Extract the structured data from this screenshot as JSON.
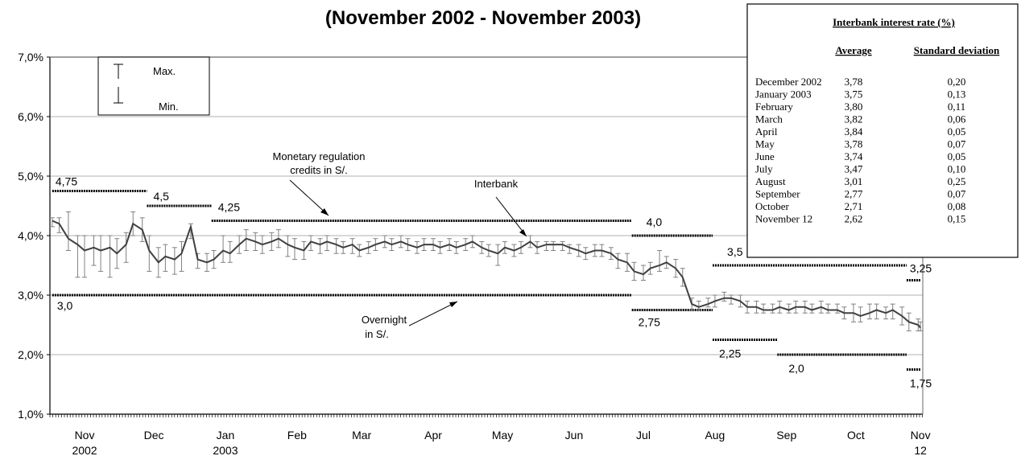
{
  "chart_data": {
    "type": "line",
    "title": "(November 2002 - November 2003)",
    "y_ticks": [
      "1,0%",
      "2,0%",
      "3,0%",
      "4,0%",
      "5,0%",
      "6,0%",
      "7,0%"
    ],
    "ylim": [
      1.0,
      7.0
    ],
    "grid": true,
    "x_tick_labels": [
      {
        "label": "Nov",
        "sub": "2002"
      },
      {
        "label": "Dec",
        "sub": ""
      },
      {
        "label": "Jan",
        "sub": "2003"
      },
      {
        "label": "Feb",
        "sub": ""
      },
      {
        "label": "Mar",
        "sub": ""
      },
      {
        "label": "Apr",
        "sub": ""
      },
      {
        "label": "May",
        "sub": ""
      },
      {
        "label": "Jun",
        "sub": ""
      },
      {
        "label": "Jul",
        "sub": ""
      },
      {
        "label": "Aug",
        "sub": ""
      },
      {
        "label": "Sep",
        "sub": ""
      },
      {
        "label": "Oct",
        "sub": ""
      },
      {
        "label": "Nov",
        "sub": "12"
      }
    ],
    "legend": {
      "max": "Max.",
      "min": "Min."
    },
    "annotations": {
      "monetary": [
        "Monetary regulation",
        "credits in S/."
      ],
      "interbank": "Interbank",
      "overnight": [
        "Overnight",
        "in S/."
      ]
    },
    "monetary_regulation_credits": [
      {
        "start": "2002-11-01",
        "end": "2002-12-12",
        "value": 4.75,
        "label": "4,75"
      },
      {
        "start": "2002-12-12",
        "end": "2003-01-09",
        "value": 4.5,
        "label": "4,5"
      },
      {
        "start": "2003-01-09",
        "end": "2003-07-10",
        "value": 4.25,
        "label": "4,25"
      },
      {
        "start": "2003-07-10",
        "end": "2003-08-14",
        "value": 4.0,
        "label": "4,0"
      },
      {
        "start": "2003-08-14",
        "end": "2003-11-06",
        "value": 3.5,
        "label": "3,5"
      },
      {
        "start": "2003-11-06",
        "end": "2003-11-12",
        "value": 3.25,
        "label": "3,25"
      }
    ],
    "overnight": [
      {
        "start": "2002-11-01",
        "end": "2003-07-10",
        "value": 3.0,
        "label": "3,0"
      },
      {
        "start": "2003-07-10",
        "end": "2003-08-14",
        "value": 2.75,
        "label": "2,75"
      },
      {
        "start": "2003-08-14",
        "end": "2003-09-11",
        "value": 2.25,
        "label": "2,25"
      },
      {
        "start": "2003-09-11",
        "end": "2003-11-06",
        "value": 2.0,
        "label": "2,0"
      },
      {
        "start": "2003-11-06",
        "end": "2003-11-12",
        "value": 1.75,
        "label": "1,75"
      }
    ],
    "interbank": {
      "x": [
        "2002-11-01",
        "2002-11-04",
        "2002-11-08",
        "2002-11-12",
        "2002-11-15",
        "2002-11-19",
        "2002-11-22",
        "2002-11-26",
        "2002-11-29",
        "2002-12-03",
        "2002-12-06",
        "2002-12-10",
        "2002-12-13",
        "2002-12-17",
        "2002-12-20",
        "2002-12-24",
        "2002-12-27",
        "2002-12-31",
        "2003-01-03",
        "2003-01-07",
        "2003-01-10",
        "2003-01-14",
        "2003-01-17",
        "2003-01-21",
        "2003-01-24",
        "2003-01-28",
        "2003-01-31",
        "2003-02-04",
        "2003-02-07",
        "2003-02-11",
        "2003-02-14",
        "2003-02-18",
        "2003-02-21",
        "2003-02-25",
        "2003-02-28",
        "2003-03-04",
        "2003-03-07",
        "2003-03-11",
        "2003-03-14",
        "2003-03-18",
        "2003-03-21",
        "2003-03-25",
        "2003-03-28",
        "2003-04-01",
        "2003-04-04",
        "2003-04-08",
        "2003-04-11",
        "2003-04-15",
        "2003-04-18",
        "2003-04-22",
        "2003-04-25",
        "2003-04-29",
        "2003-05-02",
        "2003-05-06",
        "2003-05-09",
        "2003-05-13",
        "2003-05-16",
        "2003-05-20",
        "2003-05-23",
        "2003-05-27",
        "2003-05-30",
        "2003-06-03",
        "2003-06-06",
        "2003-06-10",
        "2003-06-13",
        "2003-06-17",
        "2003-06-20",
        "2003-06-24",
        "2003-06-27",
        "2003-07-01",
        "2003-07-04",
        "2003-07-08",
        "2003-07-11",
        "2003-07-15",
        "2003-07-18",
        "2003-07-22",
        "2003-07-25",
        "2003-07-29",
        "2003-08-01",
        "2003-08-05",
        "2003-08-08",
        "2003-08-12",
        "2003-08-15",
        "2003-08-19",
        "2003-08-22",
        "2003-08-26",
        "2003-08-29",
        "2003-09-02",
        "2003-09-05",
        "2003-09-09",
        "2003-09-12",
        "2003-09-16",
        "2003-09-19",
        "2003-09-23",
        "2003-09-26",
        "2003-09-30",
        "2003-10-03",
        "2003-10-07",
        "2003-10-10",
        "2003-10-14",
        "2003-10-17",
        "2003-10-21",
        "2003-10-24",
        "2003-10-28",
        "2003-10-31",
        "2003-11-04",
        "2003-11-07",
        "2003-11-11",
        "2003-11-12"
      ],
      "values": [
        4.25,
        4.2,
        3.95,
        3.85,
        3.75,
        3.8,
        3.75,
        3.8,
        3.7,
        3.85,
        4.2,
        4.1,
        3.75,
        3.55,
        3.65,
        3.6,
        3.7,
        4.15,
        3.6,
        3.55,
        3.6,
        3.75,
        3.7,
        3.85,
        3.95,
        3.9,
        3.85,
        3.9,
        3.95,
        3.85,
        3.8,
        3.75,
        3.9,
        3.85,
        3.9,
        3.85,
        3.8,
        3.85,
        3.75,
        3.8,
        3.85,
        3.9,
        3.85,
        3.9,
        3.85,
        3.8,
        3.85,
        3.85,
        3.8,
        3.85,
        3.8,
        3.85,
        3.9,
        3.8,
        3.75,
        3.7,
        3.8,
        3.75,
        3.8,
        3.9,
        3.8,
        3.85,
        3.85,
        3.85,
        3.8,
        3.75,
        3.7,
        3.75,
        3.75,
        3.7,
        3.6,
        3.55,
        3.4,
        3.35,
        3.45,
        3.5,
        3.55,
        3.45,
        3.3,
        2.85,
        2.8,
        2.85,
        2.9,
        2.95,
        2.95,
        2.9,
        2.8,
        2.8,
        2.75,
        2.75,
        2.8,
        2.75,
        2.8,
        2.8,
        2.75,
        2.8,
        2.75,
        2.75,
        2.7,
        2.7,
        2.65,
        2.7,
        2.75,
        2.7,
        2.75,
        2.65,
        2.55,
        2.5,
        2.45
      ],
      "min": [
        4.15,
        4.05,
        3.75,
        3.3,
        3.3,
        3.5,
        3.4,
        3.3,
        3.45,
        3.55,
        4.0,
        3.9,
        3.4,
        3.3,
        3.4,
        3.35,
        3.4,
        3.95,
        3.45,
        3.4,
        3.45,
        3.55,
        3.55,
        3.7,
        3.75,
        3.75,
        3.7,
        3.75,
        3.8,
        3.65,
        3.6,
        3.6,
        3.75,
        3.7,
        3.75,
        3.7,
        3.7,
        3.7,
        3.65,
        3.7,
        3.75,
        3.8,
        3.75,
        3.8,
        3.75,
        3.7,
        3.75,
        3.75,
        3.7,
        3.75,
        3.7,
        3.75,
        3.8,
        3.7,
        3.65,
        3.5,
        3.7,
        3.65,
        3.7,
        3.8,
        3.7,
        3.75,
        3.75,
        3.75,
        3.7,
        3.65,
        3.6,
        3.65,
        3.65,
        3.6,
        3.45,
        3.4,
        3.25,
        3.25,
        3.35,
        3.4,
        3.45,
        3.3,
        3.15,
        2.75,
        2.75,
        2.8,
        2.8,
        2.9,
        2.85,
        2.8,
        2.7,
        2.7,
        2.7,
        2.7,
        2.7,
        2.7,
        2.7,
        2.7,
        2.7,
        2.7,
        2.7,
        2.7,
        2.6,
        2.55,
        2.55,
        2.6,
        2.6,
        2.6,
        2.6,
        2.5,
        2.4,
        2.4,
        2.4
      ],
      "max": [
        4.3,
        4.3,
        4.4,
        4.0,
        4.0,
        4.0,
        4.0,
        4.0,
        3.95,
        4.05,
        4.4,
        4.3,
        4.0,
        3.8,
        3.85,
        3.8,
        3.9,
        4.2,
        3.7,
        3.7,
        3.75,
        4.0,
        3.9,
        4.0,
        4.1,
        4.05,
        4.0,
        4.05,
        4.1,
        4.0,
        3.95,
        3.9,
        4.0,
        3.95,
        4.0,
        3.95,
        3.9,
        3.95,
        3.85,
        3.9,
        3.95,
        4.0,
        3.95,
        4.0,
        3.95,
        3.9,
        3.95,
        3.95,
        3.9,
        3.95,
        3.9,
        3.95,
        4.0,
        3.9,
        3.85,
        3.85,
        3.9,
        3.85,
        3.9,
        4.0,
        3.9,
        3.9,
        3.9,
        3.9,
        3.85,
        3.85,
        3.8,
        3.85,
        3.85,
        3.8,
        3.7,
        3.7,
        3.55,
        3.5,
        3.55,
        3.75,
        3.65,
        3.6,
        3.45,
        2.95,
        2.9,
        2.95,
        3.0,
        3.05,
        3.0,
        3.0,
        2.9,
        2.9,
        2.85,
        2.85,
        2.9,
        2.85,
        2.9,
        2.9,
        2.85,
        2.9,
        2.85,
        2.85,
        2.8,
        2.85,
        2.8,
        2.85,
        2.85,
        2.8,
        2.85,
        2.8,
        2.7,
        2.6,
        2.55
      ]
    },
    "table": {
      "title": "Interbank interest rate (%)",
      "col_avg": "Average",
      "col_sd": "Standard deviation",
      "rows": [
        {
          "month": "December 2002",
          "avg": "3,78",
          "sd": "0,20"
        },
        {
          "month": "January 2003",
          "avg": "3,75",
          "sd": "0,13"
        },
        {
          "month": "February",
          "avg": "3,80",
          "sd": "0,11"
        },
        {
          "month": "March",
          "avg": "3,82",
          "sd": "0,06"
        },
        {
          "month": "April",
          "avg": "3,84",
          "sd": "0,05"
        },
        {
          "month": "May",
          "avg": "3,78",
          "sd": "0,07"
        },
        {
          "month": "June",
          "avg": "3,74",
          "sd": "0,05"
        },
        {
          "month": "July",
          "avg": "3,47",
          "sd": "0,10"
        },
        {
          "month": "August",
          "avg": "3,01",
          "sd": "0,25"
        },
        {
          "month": "September",
          "avg": "2,77",
          "sd": "0,07"
        },
        {
          "month": "October",
          "avg": "2,71",
          "sd": "0,08"
        },
        {
          "month": "November 12",
          "avg": "2,62",
          "sd": "0,15"
        }
      ]
    },
    "colors": {
      "line": "#404040",
      "whisker": "#808080",
      "step": "#000000",
      "grid": "#b0b0b0"
    }
  }
}
